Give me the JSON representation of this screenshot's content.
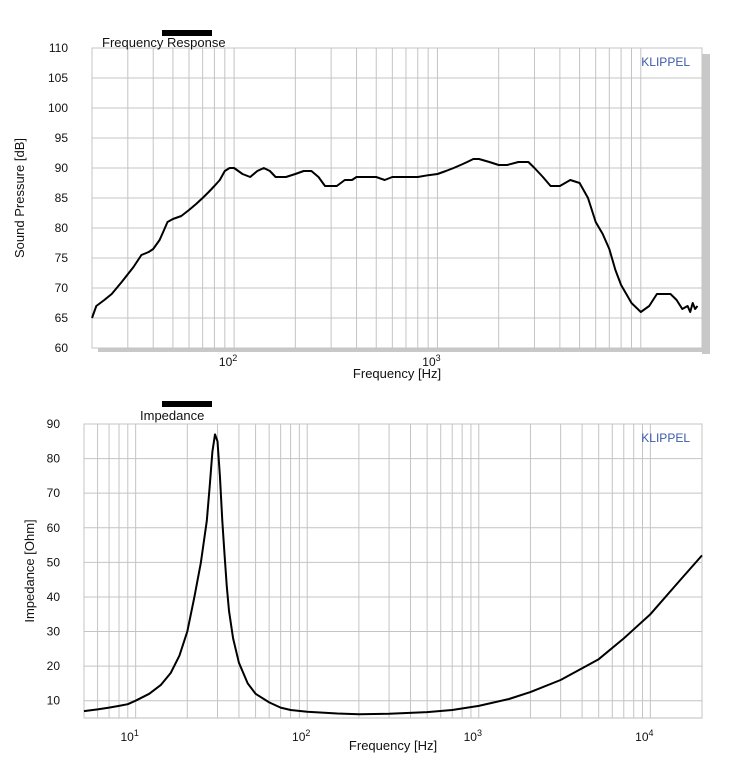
{
  "colors": {
    "curve": "#000000",
    "grid": "#c4c4c4",
    "frame": "#bdbdbd",
    "shadow": "#c8c8c8",
    "brand": "#3a5aa8",
    "title_bar": "#000000"
  },
  "chart_data": [
    {
      "type": "line",
      "title": "Frequency Response",
      "xlabel": "Frequency  [Hz]",
      "ylabel": "Sound Pressure  [dB]",
      "brand": "KLIPPEL",
      "x_scale": "log",
      "xlim": [
        20,
        20000
      ],
      "ylim": [
        60,
        110
      ],
      "y_ticks": [
        60,
        65,
        70,
        75,
        80,
        85,
        90,
        95,
        100,
        105,
        110
      ],
      "x_ticks": [
        {
          "value": 100,
          "base": "10",
          "exp": "2"
        },
        {
          "value": 1000,
          "base": "10",
          "exp": "3"
        }
      ],
      "grid": true,
      "series": [
        {
          "x": [
            20,
            21,
            23,
            25,
            28,
            32,
            35,
            38,
            40,
            43,
            45,
            47,
            50,
            55,
            60,
            65,
            70,
            75,
            80,
            85,
            90,
            95,
            100,
            110,
            120,
            130,
            140,
            150,
            160,
            180,
            200,
            220,
            240,
            260,
            280,
            300,
            320,
            350,
            380,
            400,
            450,
            500,
            550,
            600,
            700,
            800,
            900,
            1000,
            1100,
            1200,
            1300,
            1400,
            1500,
            1600,
            1800,
            2000,
            2200,
            2500,
            2800,
            3000,
            3300,
            3600,
            4000,
            4500,
            5000,
            5500,
            6000,
            6500,
            7000,
            7500,
            8000,
            9000,
            10000,
            11000,
            12000,
            13000,
            14000,
            15000,
            16000,
            17000,
            17500,
            18000,
            18500,
            19000
          ],
          "y": [
            65,
            67,
            68,
            69,
            71,
            73.5,
            75.5,
            76,
            76.5,
            78,
            79.5,
            81,
            81.5,
            82,
            83,
            84,
            85,
            86,
            87,
            88,
            89.5,
            90,
            90,
            89,
            88.5,
            89.5,
            90,
            89.5,
            88.5,
            88.5,
            89,
            89.5,
            89.5,
            88.5,
            87,
            87,
            87,
            88,
            88,
            88.5,
            88.5,
            88.5,
            88,
            88.5,
            88.5,
            88.5,
            88.8,
            89,
            89.5,
            90,
            90.5,
            91,
            91.5,
            91.5,
            91,
            90.5,
            90.5,
            91,
            91,
            90,
            88.5,
            87,
            87,
            88,
            87.5,
            85,
            81,
            79,
            76.5,
            73,
            70.5,
            67.5,
            66,
            67,
            69,
            69,
            69,
            68,
            66.5,
            67,
            66,
            67.5,
            66.5,
            67
          ]
        }
      ]
    },
    {
      "type": "line",
      "title": "Impedance",
      "xlabel": "Frequency  [Hz]",
      "ylabel": "Impedance  [Ohm]",
      "brand": "KLIPPEL",
      "x_scale": "log",
      "xlim": [
        5,
        20000
      ],
      "ylim": [
        5,
        90
      ],
      "y_ticks": [
        10,
        20,
        30,
        40,
        50,
        60,
        70,
        80,
        90
      ],
      "x_ticks": [
        {
          "value": 10,
          "base": "10",
          "exp": "1"
        },
        {
          "value": 100,
          "base": "10",
          "exp": "2"
        },
        {
          "value": 1000,
          "base": "10",
          "exp": "3"
        },
        {
          "value": 10000,
          "base": "10",
          "exp": "4"
        }
      ],
      "grid": true,
      "series": [
        {
          "x": [
            5,
            6,
            7,
            8,
            9,
            10,
            12,
            14,
            16,
            18,
            20,
            22,
            24,
            26,
            27,
            28,
            29,
            30,
            31,
            32,
            33,
            34,
            35,
            37,
            40,
            45,
            50,
            60,
            70,
            80,
            100,
            150,
            200,
            300,
            500,
            700,
            1000,
            1500,
            2000,
            3000,
            5000,
            7000,
            10000,
            15000,
            20000
          ],
          "y": [
            7,
            7.5,
            8,
            8.5,
            9,
            10,
            12,
            14.5,
            18,
            23,
            30,
            40,
            50,
            62,
            72,
            82,
            87,
            85,
            75,
            62,
            52,
            43,
            36,
            28,
            21,
            15,
            12,
            9.5,
            8,
            7.3,
            6.8,
            6.3,
            6.1,
            6.2,
            6.7,
            7.3,
            8.5,
            10.5,
            12.5,
            16,
            22,
            28,
            35,
            45,
            52
          ]
        }
      ]
    }
  ]
}
